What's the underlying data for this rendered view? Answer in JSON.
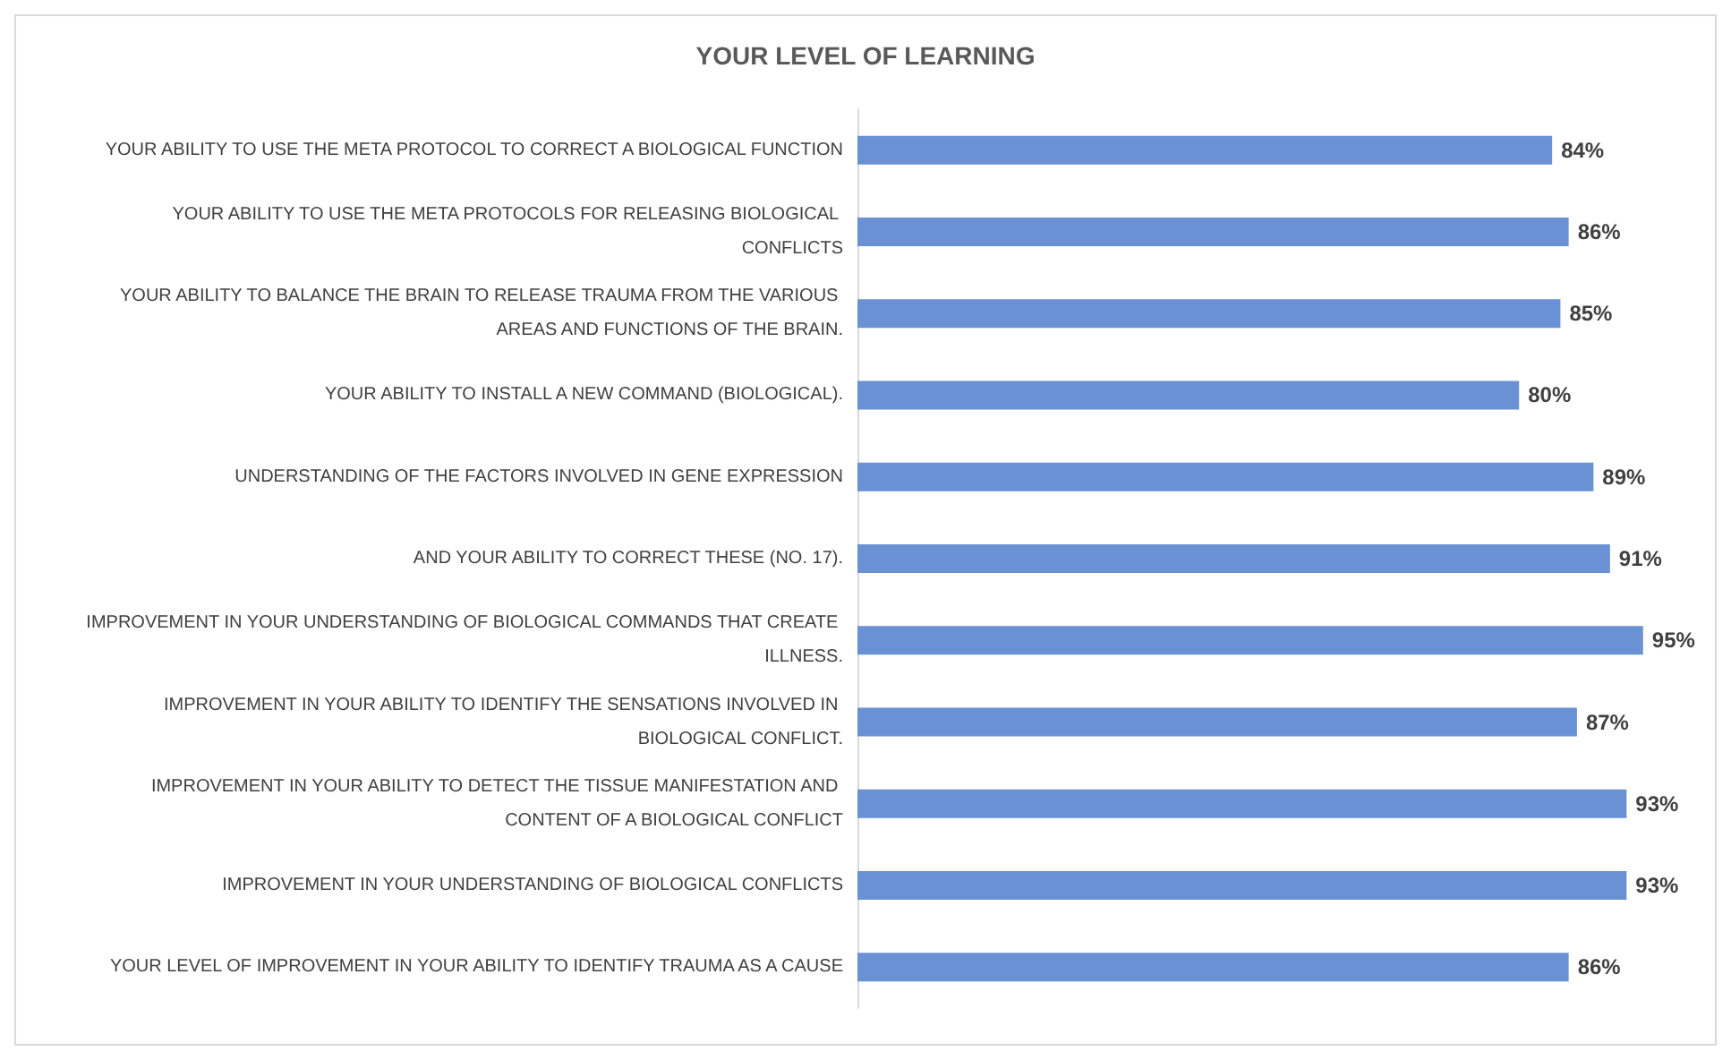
{
  "chart_data": {
    "type": "bar",
    "orientation": "horizontal",
    "title": "YOUR LEVEL OF LEARNING",
    "categories": [
      "YOUR ABILITY TO USE THE META PROTOCOL TO CORRECT A BIOLOGICAL FUNCTION",
      "YOUR ABILITY TO USE THE META PROTOCOLS FOR RELEASING BIOLOGICAL CONFLICTS",
      "YOUR ABILITY TO BALANCE THE BRAIN TO RELEASE TRAUMA FROM THE VARIOUS AREAS AND FUNCTIONS OF THE BRAIN.",
      "YOUR ABILITY TO INSTALL A NEW COMMAND (BIOLOGICAL).",
      "UNDERSTANDING OF THE FACTORS INVOLVED IN GENE EXPRESSION",
      "AND YOUR ABILITY TO CORRECT THESE (NO. 17).",
      "IMPROVEMENT IN YOUR UNDERSTANDING OF BIOLOGICAL COMMANDS THAT CREATE ILLNESS.",
      "IMPROVEMENT IN YOUR ABILITY TO IDENTIFY THE SENSATIONS INVOLVED IN BIOLOGICAL CONFLICT.",
      "IMPROVEMENT IN YOUR ABILITY TO DETECT THE TISSUE MANIFESTATION AND CONTENT OF A BIOLOGICAL CONFLICT",
      "IMPROVEMENT IN YOUR UNDERSTANDING OF BIOLOGICAL CONFLICTS",
      "YOUR LEVEL OF IMPROVEMENT IN YOUR ABILITY TO IDENTIFY TRAUMA AS A CAUSE"
    ],
    "values": [
      84,
      86,
      85,
      80,
      89,
      91,
      95,
      87,
      93,
      93,
      86
    ],
    "value_labels": [
      "84%",
      "86%",
      "85%",
      "80%",
      "89%",
      "91%",
      "95%",
      "87%",
      "93%",
      "93%",
      "86%"
    ],
    "color": "#6991d4"
  }
}
